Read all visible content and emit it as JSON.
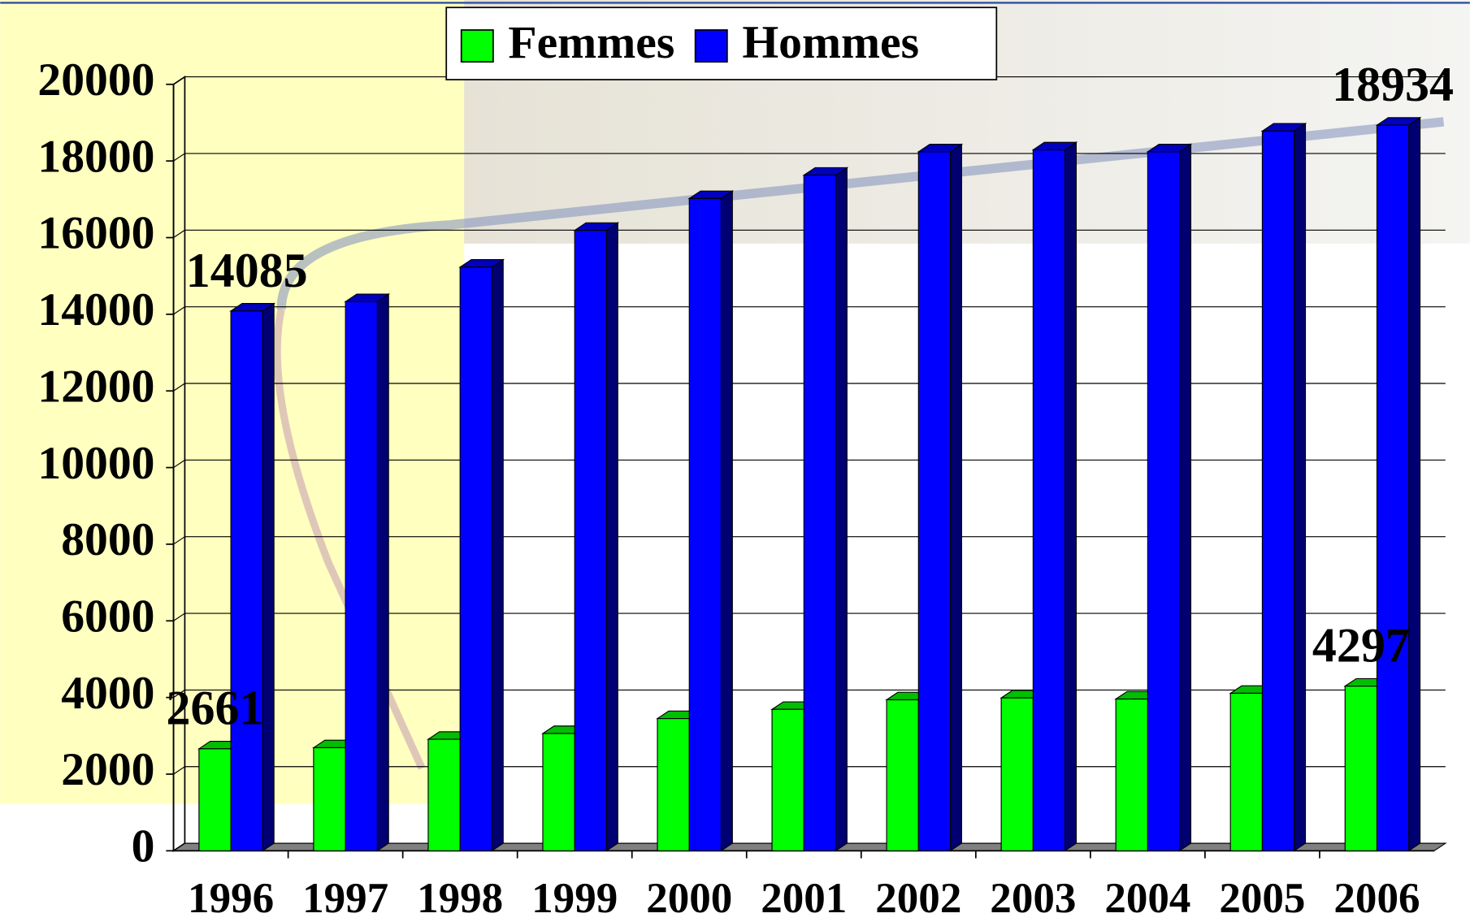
{
  "chart_data": {
    "type": "bar3d",
    "categories": [
      "1996",
      "1997",
      "1998",
      "1999",
      "2000",
      "2001",
      "2002",
      "2003",
      "2004",
      "2005",
      "2006"
    ],
    "series": [
      {
        "name": "Femmes",
        "color": "#00ff00",
        "values": [
          2661,
          2690,
          2910,
          3060,
          3450,
          3690,
          3940,
          3990,
          3960,
          4110,
          4297
        ],
        "value_labels": [
          "2661",
          null,
          null,
          null,
          null,
          null,
          null,
          null,
          null,
          null,
          "4297"
        ]
      },
      {
        "name": "Hommes",
        "color": "#0000ff",
        "values": [
          14085,
          14330,
          15230,
          16190,
          17020,
          17630,
          18240,
          18290,
          18240,
          18780,
          18934
        ],
        "value_labels": [
          "14085",
          null,
          null,
          null,
          null,
          null,
          null,
          null,
          null,
          null,
          "18934"
        ]
      }
    ],
    "ylim": [
      0,
      20000
    ],
    "yticks": [
      0,
      2000,
      4000,
      6000,
      8000,
      10000,
      12000,
      14000,
      16000,
      18000,
      20000
    ],
    "grid": true,
    "legend": "top"
  }
}
